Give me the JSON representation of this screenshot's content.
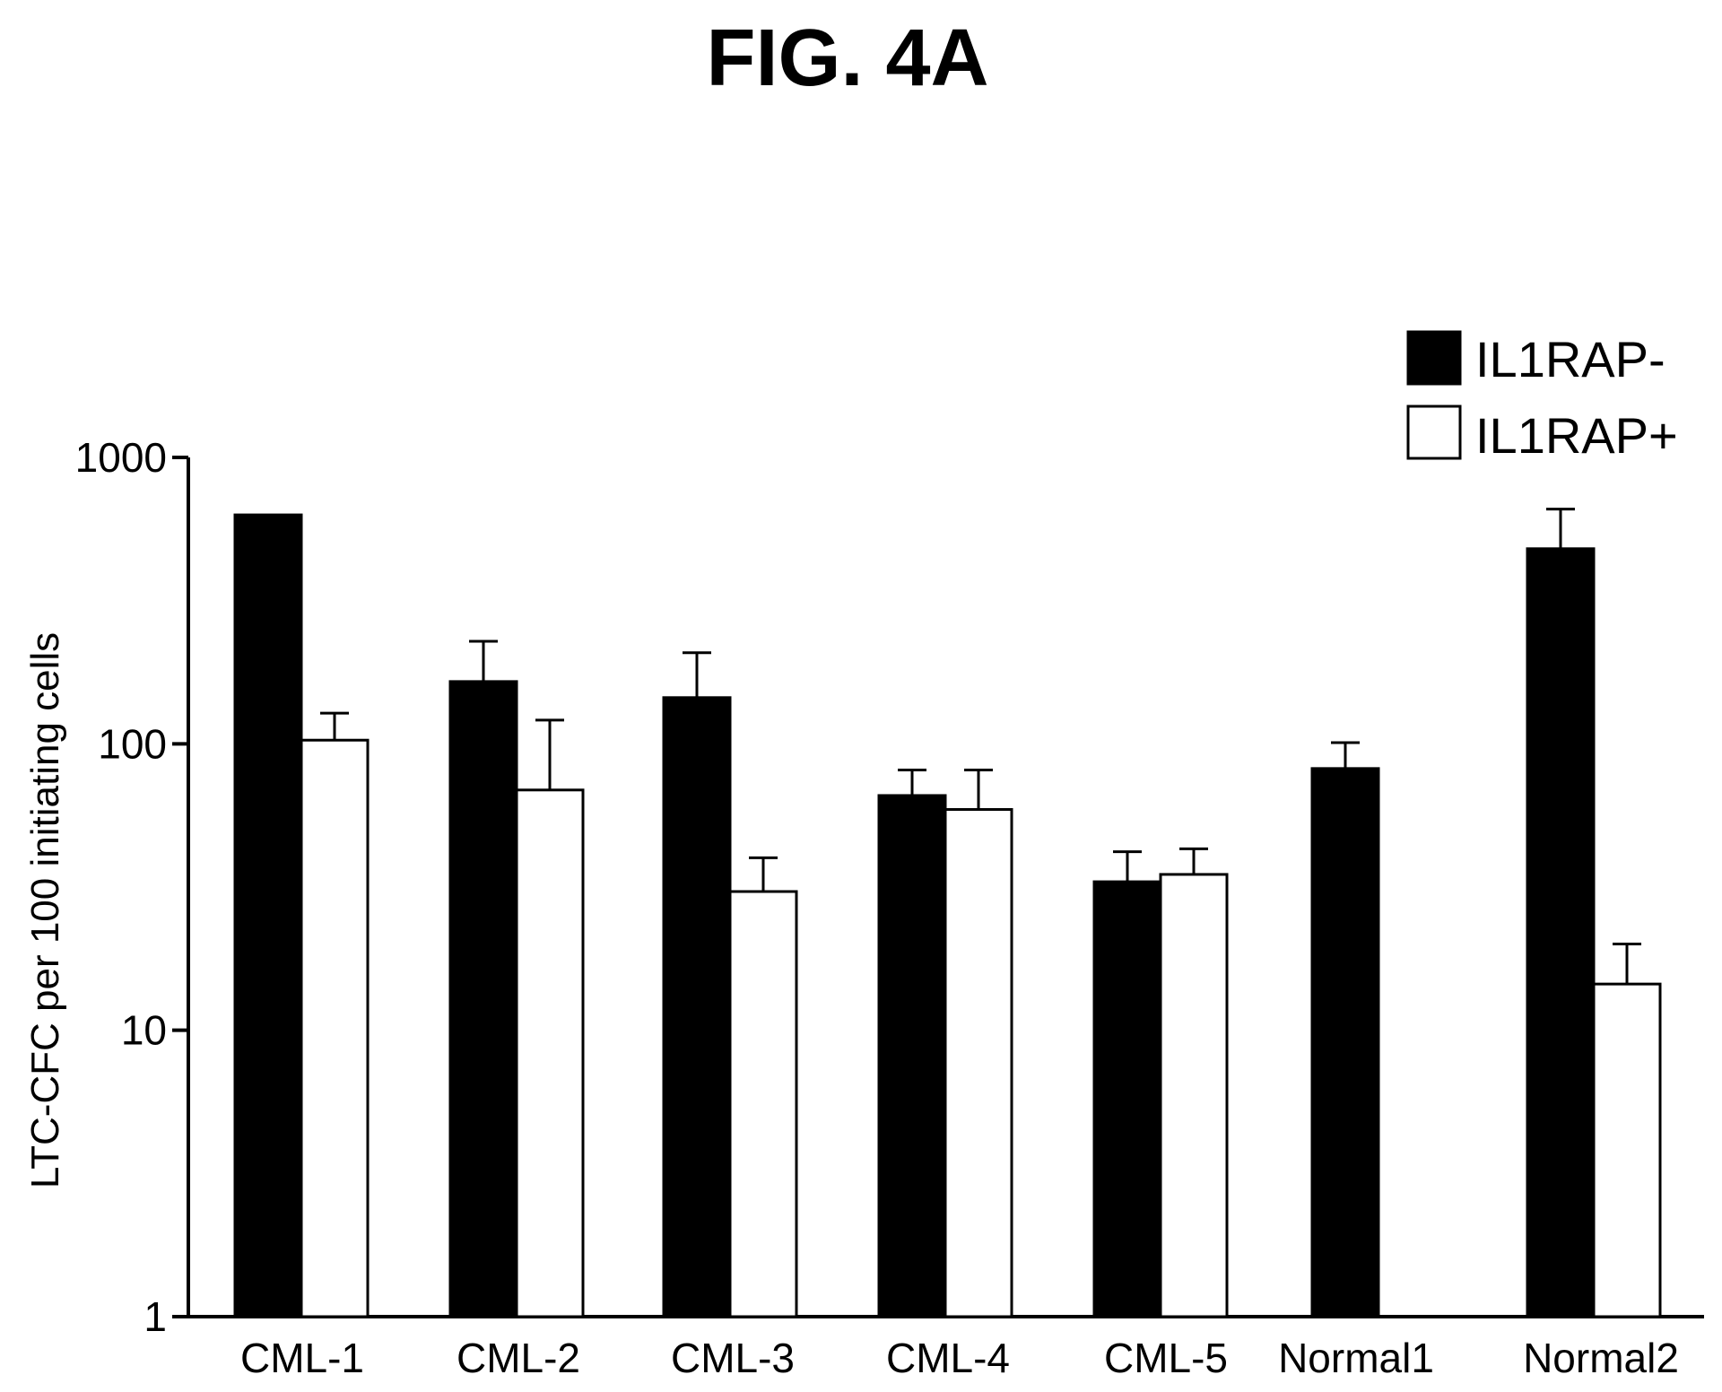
{
  "chart_data": {
    "type": "bar",
    "title": "FIG. 4A",
    "xlabel": "",
    "ylabel": "LTC-CFC per 100 initiating cells",
    "yscale": "log",
    "ylim": [
      1,
      1000
    ],
    "yticks": [
      {
        "value": 1,
        "label": "1"
      },
      {
        "value": 10,
        "label": "10"
      },
      {
        "value": 100,
        "label": "100"
      },
      {
        "value": 1000,
        "label": "1000"
      }
    ],
    "grid": false,
    "legend_position": "top-right",
    "categories": [
      "CML-1",
      "CML-2",
      "CML-3",
      "CML-4",
      "CML-5",
      "Normal1",
      "Normal2"
    ],
    "series": [
      {
        "name": "IL1RAP-",
        "color": "#000000",
        "fill": "solid",
        "values": [
          630,
          165,
          145,
          66,
          33,
          82,
          480
        ],
        "error_upper": [
          null,
          228,
          208,
          81,
          42,
          101,
          660
        ]
      },
      {
        "name": "IL1RAP+",
        "color": "#ffffff",
        "fill": "open",
        "values": [
          103,
          69,
          null,
          59,
          35,
          null,
          14.5
        ],
        "error_upper": [
          128,
          121,
          null,
          81,
          43,
          null,
          20
        ]
      }
    ],
    "series_note_cml3": [
      null,
      null,
      30.5,
      null,
      null,
      null,
      null
    ],
    "series_note_cml3_error": [
      null,
      null,
      40,
      null,
      null,
      null,
      null
    ]
  }
}
